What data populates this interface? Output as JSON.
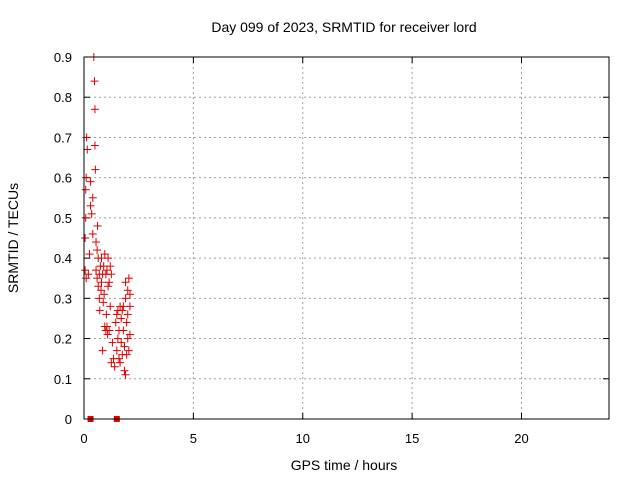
{
  "chart_data": {
    "type": "scatter",
    "title": "Day 099 of 2023, SRMTID for receiver lord",
    "xlabel": "GPS time / hours",
    "ylabel": "SRMTID / TECUs",
    "xlim": [
      0,
      24
    ],
    "ylim": [
      0,
      0.9
    ],
    "xticks": [
      0,
      5,
      10,
      15,
      20
    ],
    "yticks": [
      0,
      0.1,
      0.2,
      0.3,
      0.4,
      0.5,
      0.6,
      0.7,
      0.8,
      0.9
    ],
    "xtick_labels": [
      "0",
      "5",
      "10",
      "15",
      "20"
    ],
    "ytick_labels": [
      "0",
      "0.1",
      "0.2",
      "0.3",
      "0.4",
      "0.5",
      "0.6",
      "0.7",
      "0.8",
      "0.9"
    ],
    "grid": true,
    "marker": "plus",
    "color": "#e00000",
    "series": [
      {
        "name": "SRMTID",
        "points": [
          [
            0.05,
            0.37
          ],
          [
            0.05,
            0.45
          ],
          [
            0.08,
            0.57
          ],
          [
            0.08,
            0.5
          ],
          [
            0.1,
            0.35
          ],
          [
            0.1,
            0.6
          ],
          [
            0.12,
            0.7
          ],
          [
            0.15,
            0.67
          ],
          [
            0.2,
            0.36
          ],
          [
            0.25,
            0.41
          ],
          [
            0.3,
            0.53
          ],
          [
            0.3,
            0.59
          ],
          [
            0.35,
            0.51
          ],
          [
            0.4,
            0.55
          ],
          [
            0.4,
            0.46
          ],
          [
            0.45,
            0.9
          ],
          [
            0.48,
            0.84
          ],
          [
            0.5,
            0.77
          ],
          [
            0.5,
            0.68
          ],
          [
            0.52,
            0.62
          ],
          [
            0.55,
            0.44
          ],
          [
            0.55,
            0.37
          ],
          [
            0.6,
            0.42
          ],
          [
            0.6,
            0.35
          ],
          [
            0.62,
            0.48
          ],
          [
            0.65,
            0.4
          ],
          [
            0.65,
            0.33
          ],
          [
            0.7,
            0.3
          ],
          [
            0.7,
            0.36
          ],
          [
            0.72,
            0.27
          ],
          [
            0.75,
            0.38
          ],
          [
            0.78,
            0.32
          ],
          [
            0.8,
            0.34
          ],
          [
            0.8,
            0.4
          ],
          [
            0.85,
            0.17
          ],
          [
            0.85,
            0.36
          ],
          [
            0.88,
            0.29
          ],
          [
            0.9,
            0.38
          ],
          [
            0.92,
            0.31
          ],
          [
            0.95,
            0.23
          ],
          [
            0.95,
            0.41
          ],
          [
            1.0,
            0.22
          ],
          [
            1.0,
            0.36
          ],
          [
            1.02,
            0.26
          ],
          [
            1.05,
            0.23
          ],
          [
            1.05,
            0.37
          ],
          [
            1.08,
            0.21
          ],
          [
            1.1,
            0.33
          ],
          [
            1.1,
            0.4
          ],
          [
            1.15,
            0.34
          ],
          [
            1.15,
            0.22
          ],
          [
            1.2,
            0.38
          ],
          [
            1.2,
            0.28
          ],
          [
            1.25,
            0.14
          ],
          [
            1.25,
            0.36
          ],
          [
            1.3,
            0.19
          ],
          [
            1.35,
            0.15
          ],
          [
            1.4,
            0.13
          ],
          [
            1.45,
            0.24
          ],
          [
            1.5,
            0.26
          ],
          [
            1.5,
            0.17
          ],
          [
            1.55,
            0.27
          ],
          [
            1.55,
            0.2
          ],
          [
            1.6,
            0.22
          ],
          [
            1.6,
            0.15
          ],
          [
            1.65,
            0.28
          ],
          [
            1.65,
            0.14
          ],
          [
            1.7,
            0.19
          ],
          [
            1.7,
            0.25
          ],
          [
            1.75,
            0.27
          ],
          [
            1.75,
            0.16
          ],
          [
            1.8,
            0.28
          ],
          [
            1.8,
            0.22
          ],
          [
            1.85,
            0.12
          ],
          [
            1.85,
            0.18
          ],
          [
            1.9,
            0.11
          ],
          [
            1.9,
            0.3
          ],
          [
            1.9,
            0.34
          ],
          [
            1.95,
            0.24
          ],
          [
            1.95,
            0.16
          ],
          [
            2.0,
            0.32
          ],
          [
            2.0,
            0.2
          ],
          [
            2.0,
            0.26
          ],
          [
            2.05,
            0.17
          ],
          [
            2.05,
            0.35
          ],
          [
            2.1,
            0.28
          ],
          [
            2.1,
            0.21
          ],
          [
            2.1,
            0.31
          ]
        ],
        "zero_points": [
          0.3,
          1.5
        ]
      }
    ]
  }
}
